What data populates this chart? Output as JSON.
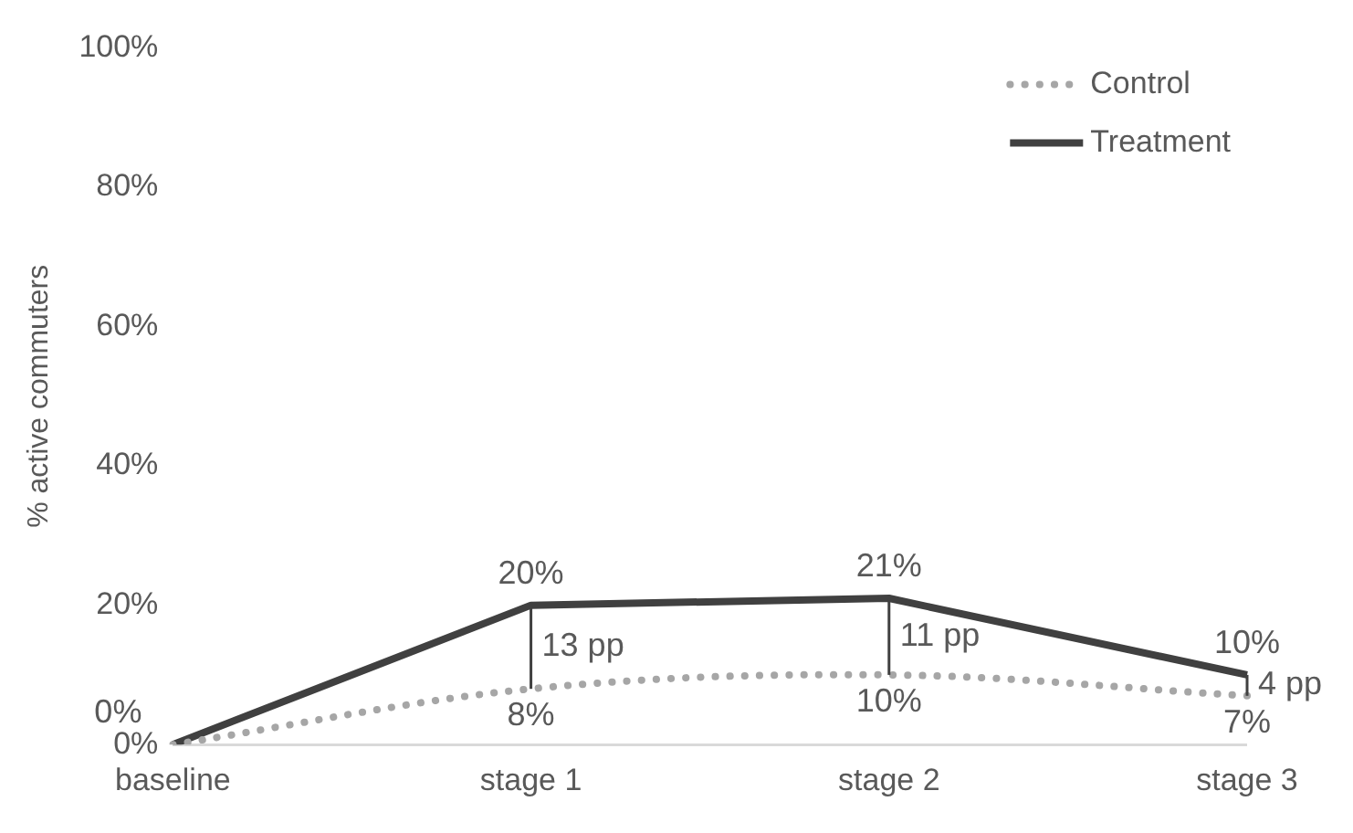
{
  "chart_data": {
    "type": "line",
    "ylabel": "% active commuters",
    "categories": [
      "baseline",
      "stage 1",
      "stage 2",
      "stage 3"
    ],
    "series": [
      {
        "name": "Control",
        "color": "#a6a6a6",
        "line_style": "dotted",
        "values": [
          0,
          8,
          10,
          7
        ],
        "value_labels": [
          null,
          "8%",
          "10%",
          "7%"
        ]
      },
      {
        "name": "Treatment",
        "color": "#404040",
        "line_style": "solid",
        "values": [
          0,
          20,
          21,
          10
        ],
        "value_labels": [
          "0%",
          "20%",
          "21%",
          "10%"
        ]
      }
    ],
    "ylim": [
      0,
      100
    ],
    "yticks": [
      {
        "value": 0,
        "label": "0%"
      },
      {
        "value": 20,
        "label": "20%"
      },
      {
        "value": 40,
        "label": "40%"
      },
      {
        "value": 60,
        "label": "60%"
      },
      {
        "value": 80,
        "label": "80%"
      },
      {
        "value": 100,
        "label": "100%"
      }
    ],
    "annotations": [
      "13 pp",
      "11 pp",
      "4 pp"
    ],
    "grid": false,
    "legend": "top right",
    "marker": "none"
  }
}
